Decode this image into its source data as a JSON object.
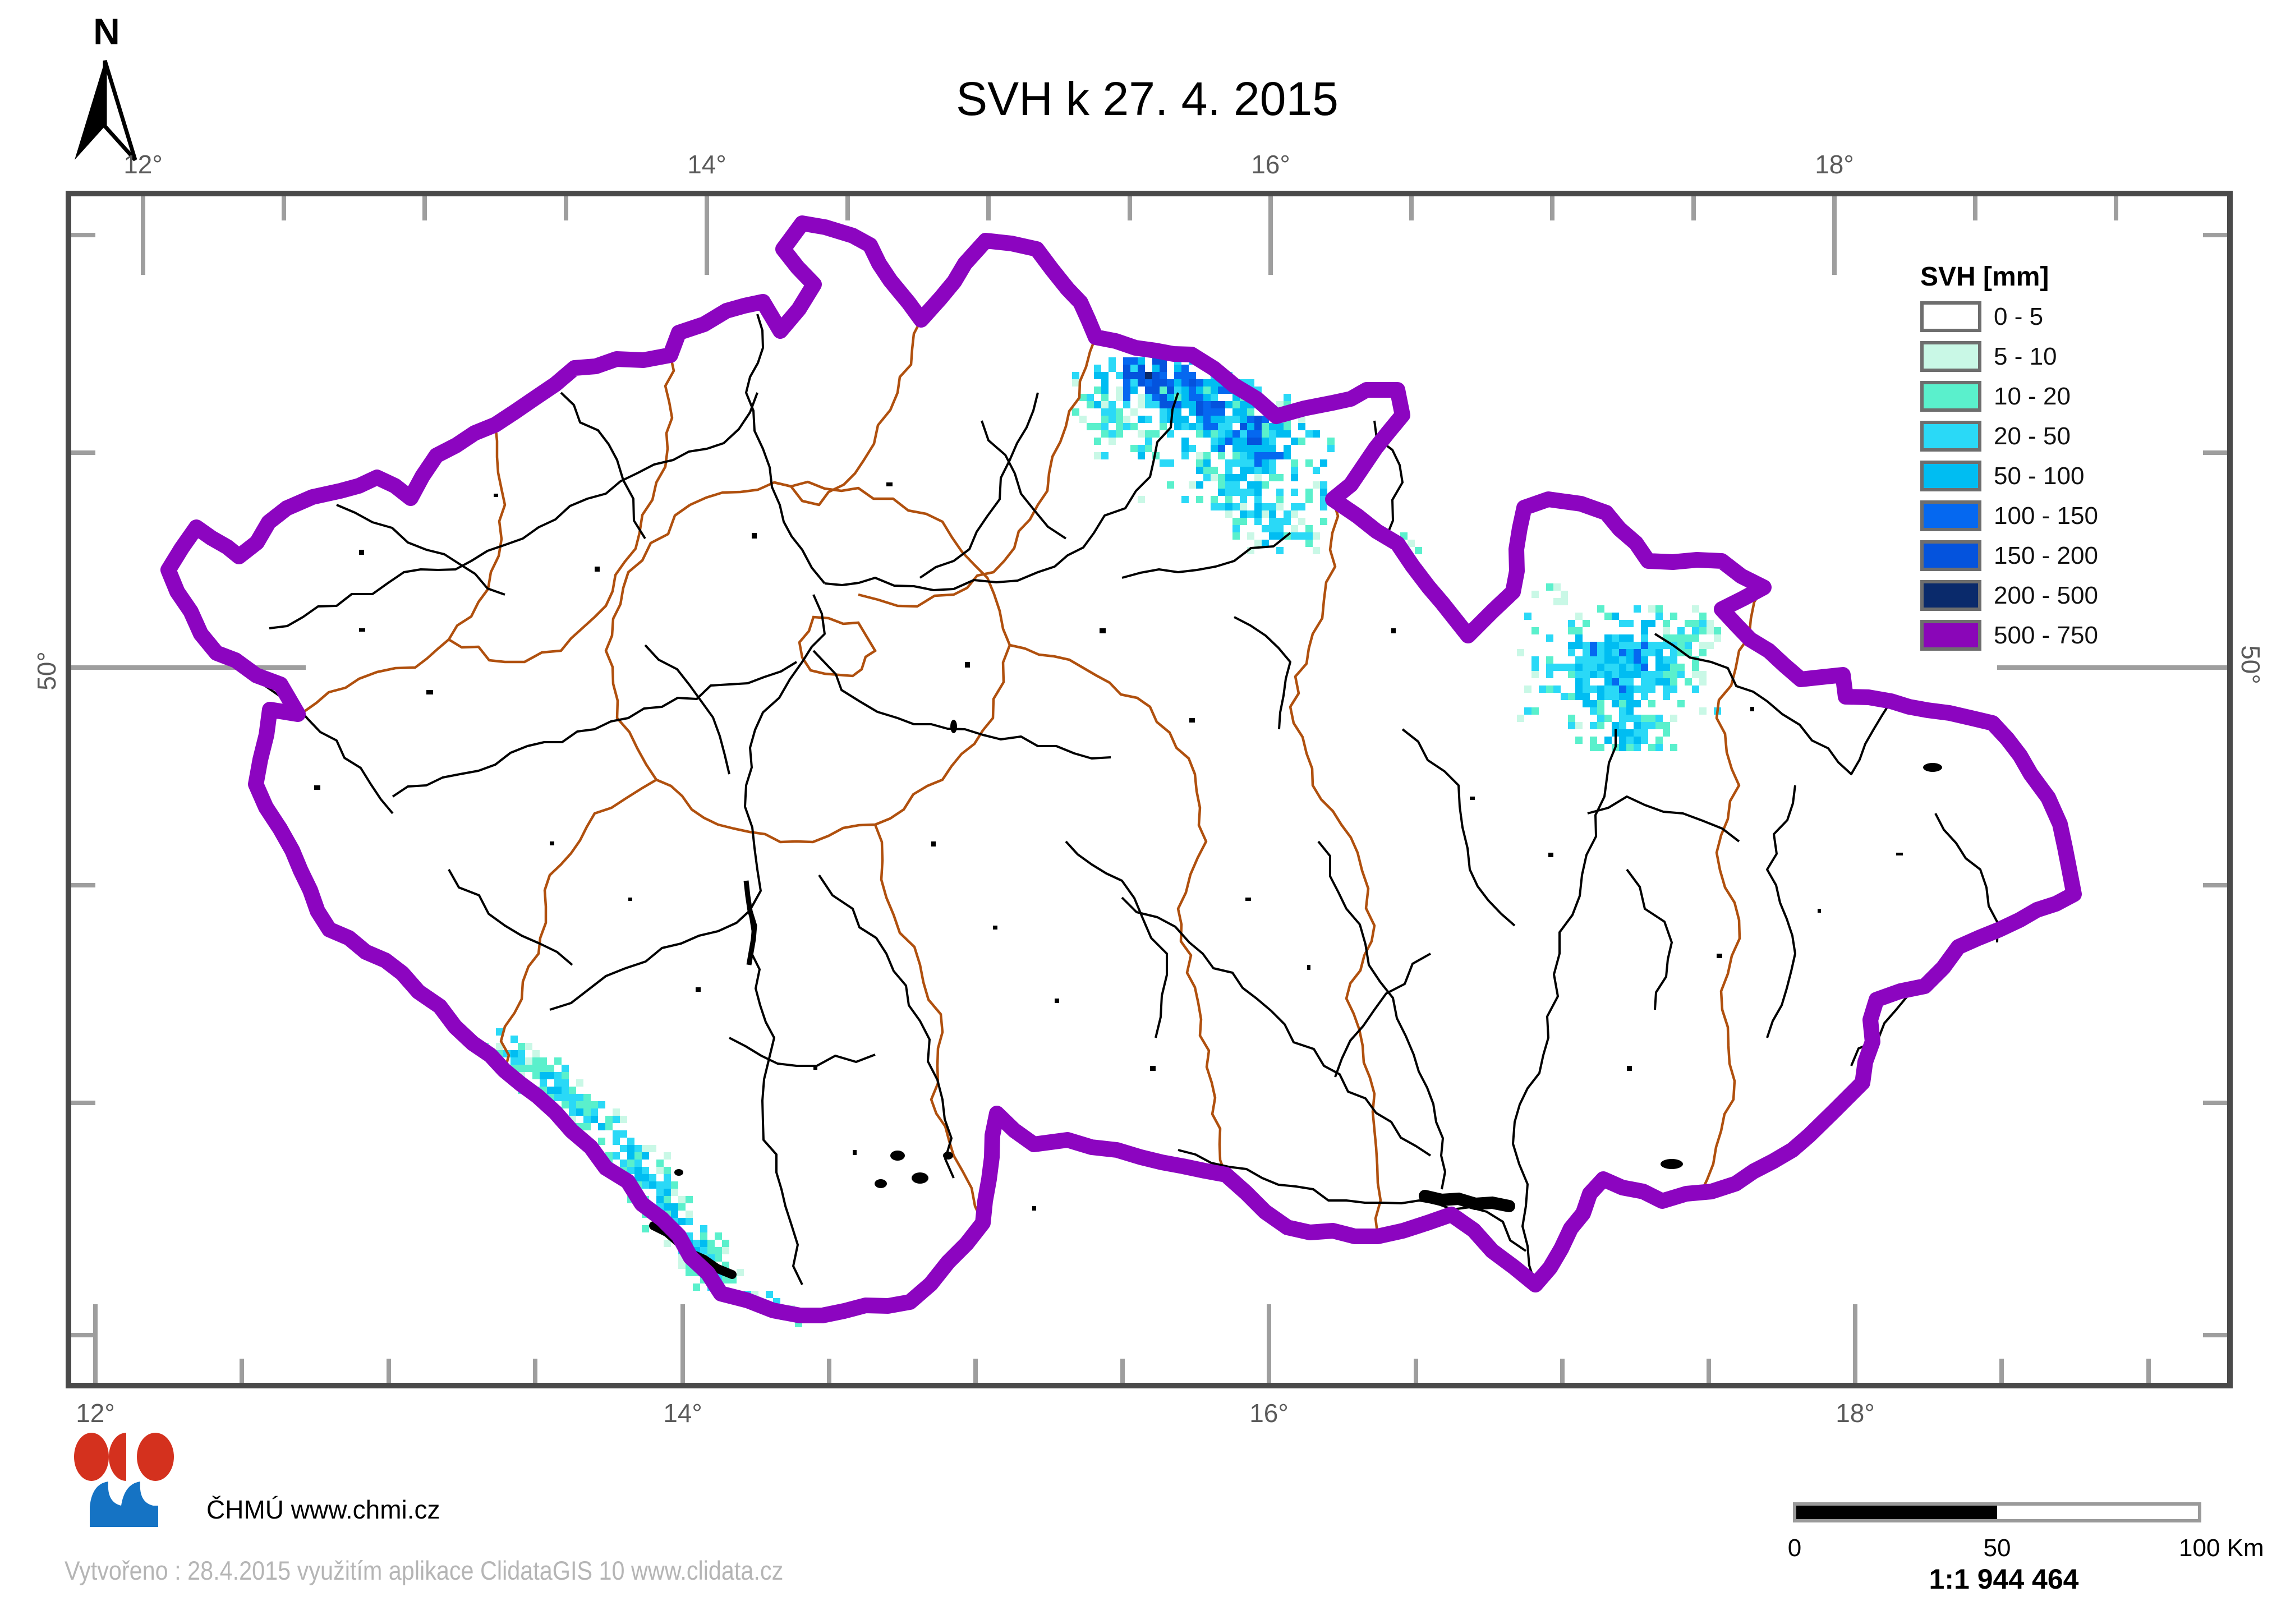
{
  "title": "SVH k 27. 4. 2015",
  "north_label": "N",
  "graticule": {
    "meridians": [
      "12°",
      "14°",
      "16°",
      "18°"
    ],
    "parallel": "50°"
  },
  "legend": {
    "title": "SVH [mm]",
    "items": [
      {
        "label": "0 - 5",
        "color": "#ffffff"
      },
      {
        "label": "5 - 10",
        "color": "#c9f8e6"
      },
      {
        "label": "10 - 20",
        "color": "#5af0cc"
      },
      {
        "label": "20 - 50",
        "color": "#2ad9f7"
      },
      {
        "label": "50 - 100",
        "color": "#00bdf2"
      },
      {
        "label": "100 - 150",
        "color": "#0568f0"
      },
      {
        "label": "150 - 200",
        "color": "#0453dd"
      },
      {
        "label": "200 - 500",
        "color": "#0a2a6b"
      },
      {
        "label": "500 - 750",
        "color": "#8a06b8"
      }
    ]
  },
  "scalebar": {
    "tick_labels": [
      "0",
      "50",
      "100 Km"
    ],
    "ratio": "1:1 944 464"
  },
  "footer": {
    "org": "ČHMÚ www.chmi.cz",
    "credit": "Vytvořeno : 28.4.2015 využitím aplikace ClidataGIS 10 www.clidata.cz"
  },
  "map": {
    "colors": {
      "country_border": "#8c05c0",
      "region_boundary": "#b0500e",
      "river": "#000000",
      "water_body": "#000000",
      "frame": "#4a4a4a",
      "tick": "#9e9e9e",
      "graticule_label": "#5a5a5a",
      "legend_swatch_border": "#6e6e6e",
      "scalebar_border": "#9a9a9a",
      "credit_text": "#b5b5b5",
      "logo_red": "#d4311e",
      "logo_blue": "#1573c4"
    }
  }
}
